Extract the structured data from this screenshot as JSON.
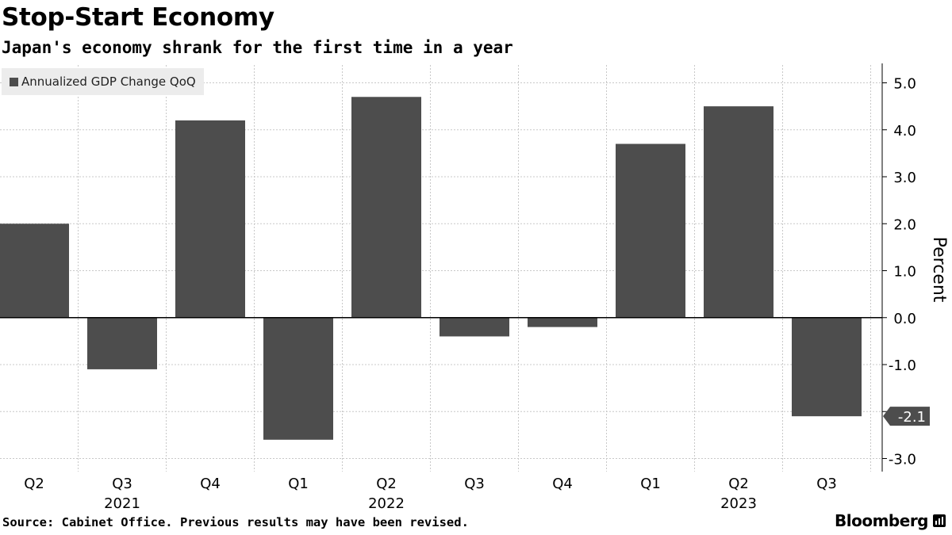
{
  "header": {
    "title": "Stop-Start Economy",
    "subtitle": "Japan's economy shrank for the first time in a year"
  },
  "footer": {
    "source": "Source: Cabinet Office. Previous results may have been revised.",
    "brand": "Bloomberg",
    "brand_icon": "bloomberg-bars-icon"
  },
  "colors": {
    "bar": "#4d4d4d",
    "grid": "#c8c8c8",
    "zero_line": "#000000",
    "legend_bg": "#ececec"
  },
  "chart_data": {
    "type": "bar",
    "title": "Stop-Start Economy",
    "subtitle": "Japan's economy shrank for the first time in a year",
    "categories": [
      "Q2",
      "Q3",
      "Q4",
      "Q1",
      "Q2",
      "Q3",
      "Q4",
      "Q1",
      "Q2",
      "Q3"
    ],
    "year_labels": [
      {
        "label": "2021",
        "category_index": 1
      },
      {
        "label": "2022",
        "category_index": 4
      },
      {
        "label": "2023",
        "category_index": 8
      }
    ],
    "series": [
      {
        "name": "Annualized GDP Change QoQ",
        "values": [
          2.0,
          -1.1,
          4.2,
          -2.6,
          4.7,
          -0.4,
          -0.2,
          3.7,
          4.5,
          -2.1
        ]
      }
    ],
    "xlabel": "",
    "ylabel": "Percent",
    "ylim": [
      -3.0,
      5.0
    ],
    "yticks": [
      5.0,
      4.0,
      3.0,
      2.0,
      1.0,
      0.0,
      -1.0,
      -2.0,
      -3.0
    ],
    "ytick_labels": [
      "5.0",
      "4.0",
      "3.0",
      "2.0",
      "1.0",
      "0.0",
      "-1.0",
      "-2.0",
      "-3.0"
    ],
    "y_axis_side": "right",
    "grid": true,
    "legend_position": "top-left",
    "callout": {
      "category_index": 9,
      "value": -2.1,
      "label": "-2.1"
    }
  }
}
